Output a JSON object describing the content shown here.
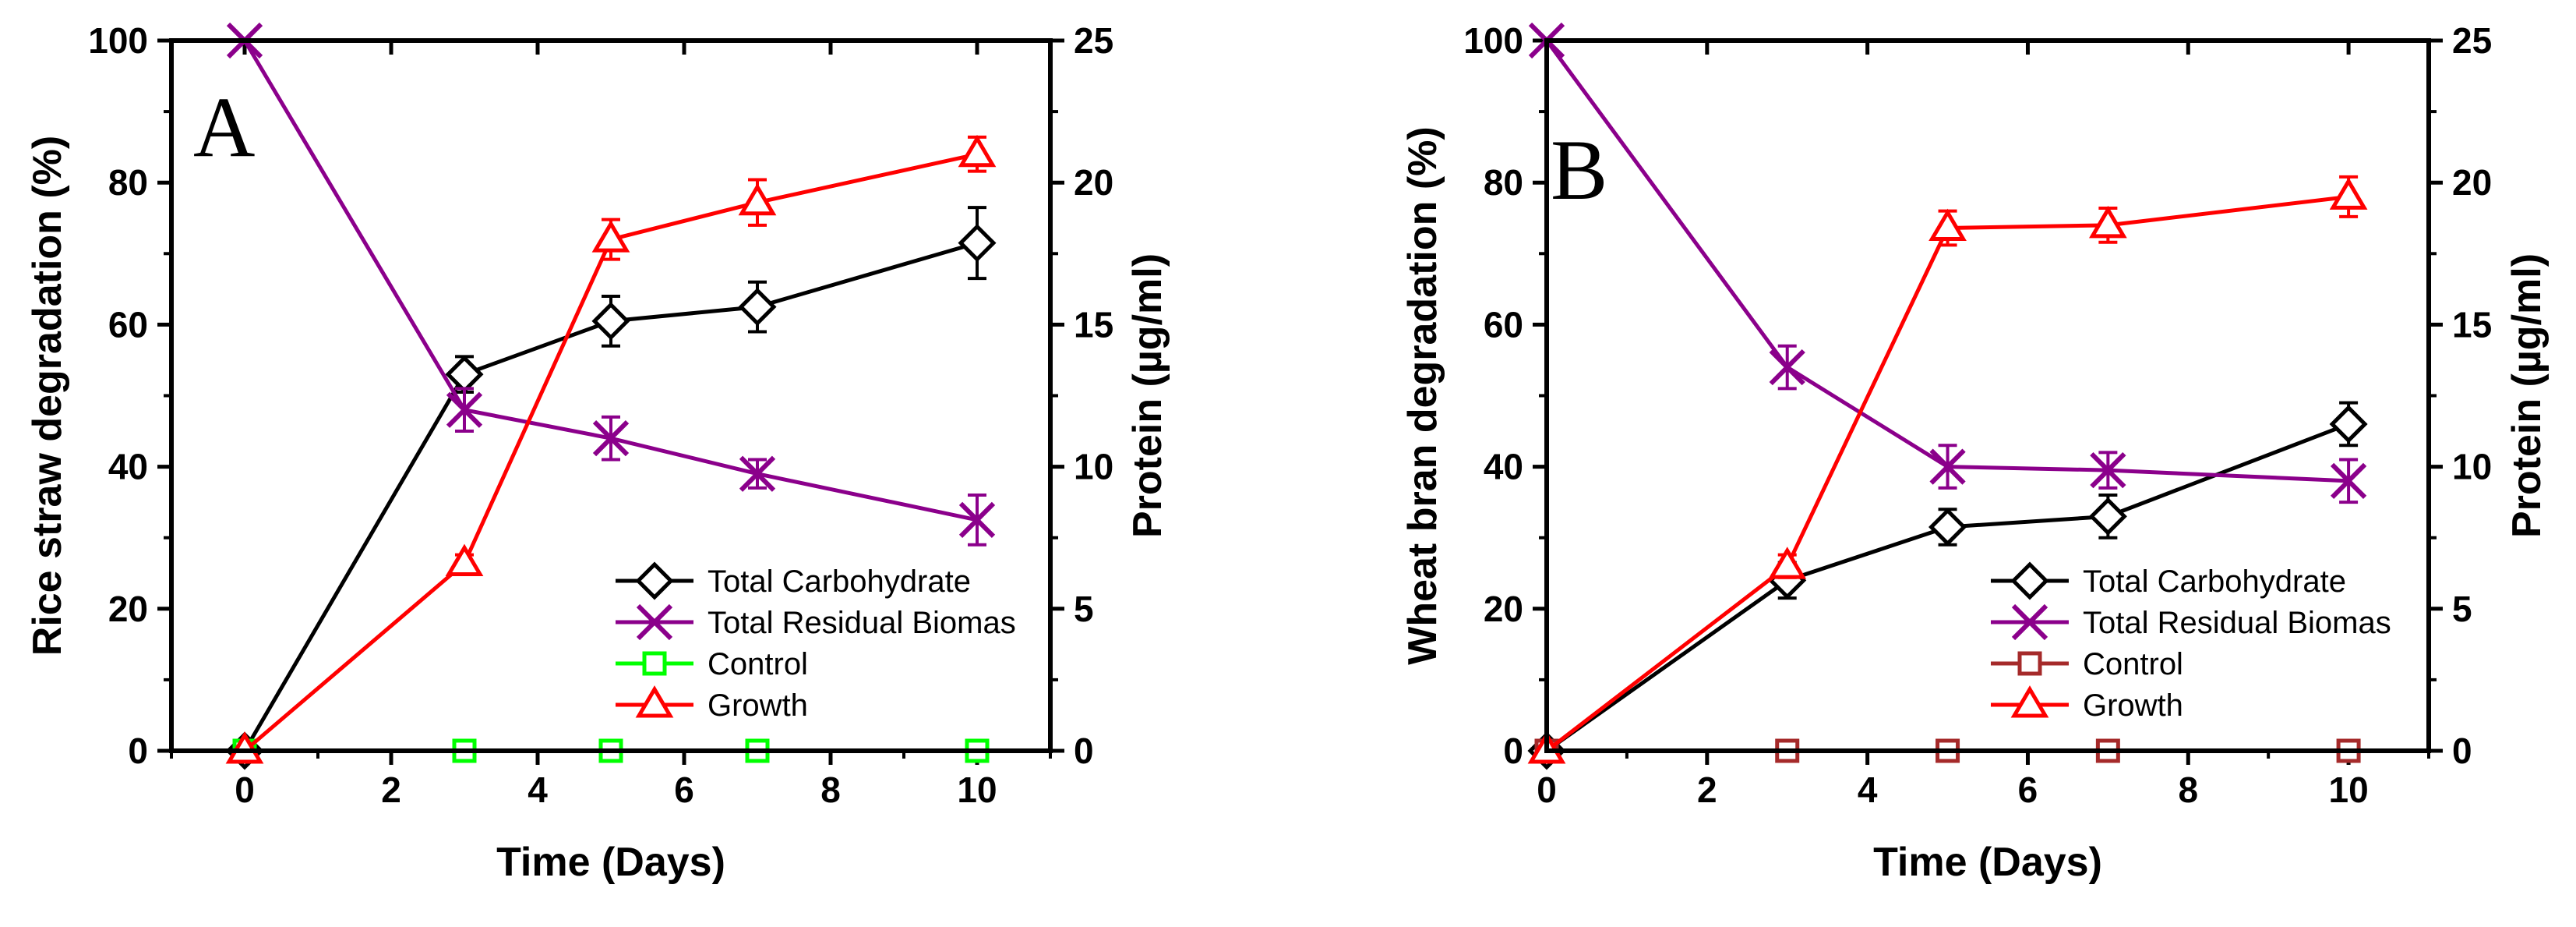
{
  "chart_data": [
    {
      "type": "line",
      "panel_label": "A",
      "xlabel": "Time (Days)",
      "ylabel_left": "Rice straw degradation (%)",
      "ylabel_right": "Protein (µg/ml)",
      "xlim": [
        -1,
        11
      ],
      "ylim_left": [
        0,
        100
      ],
      "ylim_right": [
        0,
        25
      ],
      "x_ticks": [
        0,
        2,
        4,
        6,
        8,
        10
      ],
      "y_ticks_left": [
        0,
        20,
        40,
        60,
        80,
        100
      ],
      "y_ticks_right": [
        0,
        5,
        10,
        15,
        20,
        25
      ],
      "x_tick_labels": [
        "0",
        "2",
        "4",
        "6",
        "8",
        "10"
      ],
      "y_tick_labels_left": [
        "0",
        "20",
        "40",
        "60",
        "80",
        "100"
      ],
      "y_tick_labels_right": [
        "0",
        "5",
        "10",
        "15",
        "20",
        "25"
      ],
      "legend_position": "bottom-right",
      "series": [
        {
          "name": "Total Carbohydrate",
          "axis": "left",
          "marker": "diamond",
          "color": "#000000",
          "line": true,
          "x": [
            0,
            3,
            5,
            7,
            10
          ],
          "values": [
            0,
            53,
            60.5,
            62.5,
            71.5
          ],
          "errors": [
            0,
            2.5,
            3.5,
            3.5,
            5
          ]
        },
        {
          "name": "Total Residual Biomas",
          "axis": "left",
          "marker": "x",
          "color": "#8B008B",
          "line": true,
          "x": [
            0,
            3,
            5,
            7,
            10
          ],
          "values": [
            100,
            48,
            44,
            39,
            32.5
          ],
          "errors": [
            0,
            3,
            3,
            2,
            3.5
          ]
        },
        {
          "name": "Control",
          "axis": "right",
          "marker": "square",
          "color": "#00FF00",
          "line": false,
          "x": [
            0,
            3,
            5,
            7,
            10
          ],
          "values": [
            0,
            0,
            0,
            0,
            0
          ],
          "errors": [
            0,
            0,
            0,
            0,
            0
          ]
        },
        {
          "name": "Growth",
          "axis": "right",
          "marker": "triangle",
          "color": "#FF0000",
          "line": true,
          "x": [
            0,
            3,
            5,
            7,
            10
          ],
          "values": [
            0,
            6.6,
            18,
            19.3,
            21
          ],
          "errors": [
            0,
            0.3,
            0.7,
            0.8,
            0.6
          ]
        }
      ]
    },
    {
      "type": "line",
      "panel_label": "B",
      "xlabel": "Time (Days)",
      "ylabel_left": "Wheat bran degradation (%)",
      "ylabel_right": "Protein (µg/ml)",
      "xlim": [
        0,
        11
      ],
      "ylim_left": [
        0,
        100
      ],
      "ylim_right": [
        0,
        25
      ],
      "x_ticks": [
        0,
        2,
        4,
        6,
        8,
        10
      ],
      "y_ticks_left": [
        0,
        20,
        40,
        60,
        80,
        100
      ],
      "y_ticks_right": [
        0,
        5,
        10,
        15,
        20,
        25
      ],
      "x_tick_labels": [
        "0",
        "2",
        "4",
        "6",
        "8",
        "10"
      ],
      "y_tick_labels_left": [
        "0",
        "20",
        "40",
        "60",
        "80",
        "100"
      ],
      "y_tick_labels_right": [
        "0",
        "5",
        "10",
        "15",
        "20",
        "25"
      ],
      "legend_position": "bottom-right",
      "series": [
        {
          "name": "Total Carbohydrate",
          "axis": "left",
          "marker": "diamond",
          "color": "#000000",
          "line": true,
          "x": [
            0,
            3,
            5,
            7,
            10
          ],
          "values": [
            0,
            24,
            31.5,
            33,
            46
          ],
          "errors": [
            0,
            2.5,
            2.5,
            3,
            3
          ]
        },
        {
          "name": "Total Residual Biomas",
          "axis": "left",
          "marker": "x",
          "color": "#8B008B",
          "line": true,
          "x": [
            0,
            3,
            5,
            7,
            10
          ],
          "values": [
            100,
            54,
            40,
            39.5,
            38
          ],
          "errors": [
            0,
            3,
            3,
            2.5,
            3
          ]
        },
        {
          "name": "Control",
          "axis": "right",
          "marker": "square",
          "color": "#A52A2A",
          "line": false,
          "x": [
            0,
            3,
            5,
            7,
            10
          ],
          "values": [
            0,
            0,
            0,
            0,
            0
          ],
          "errors": [
            0,
            0,
            0,
            0,
            0
          ]
        },
        {
          "name": "Growth",
          "axis": "right",
          "marker": "triangle",
          "color": "#FF0000",
          "line": true,
          "x": [
            0,
            3,
            5,
            7,
            10
          ],
          "values": [
            0,
            6.5,
            18.4,
            18.5,
            19.5
          ],
          "errors": [
            0,
            0.4,
            0.6,
            0.6,
            0.7
          ]
        }
      ]
    }
  ]
}
